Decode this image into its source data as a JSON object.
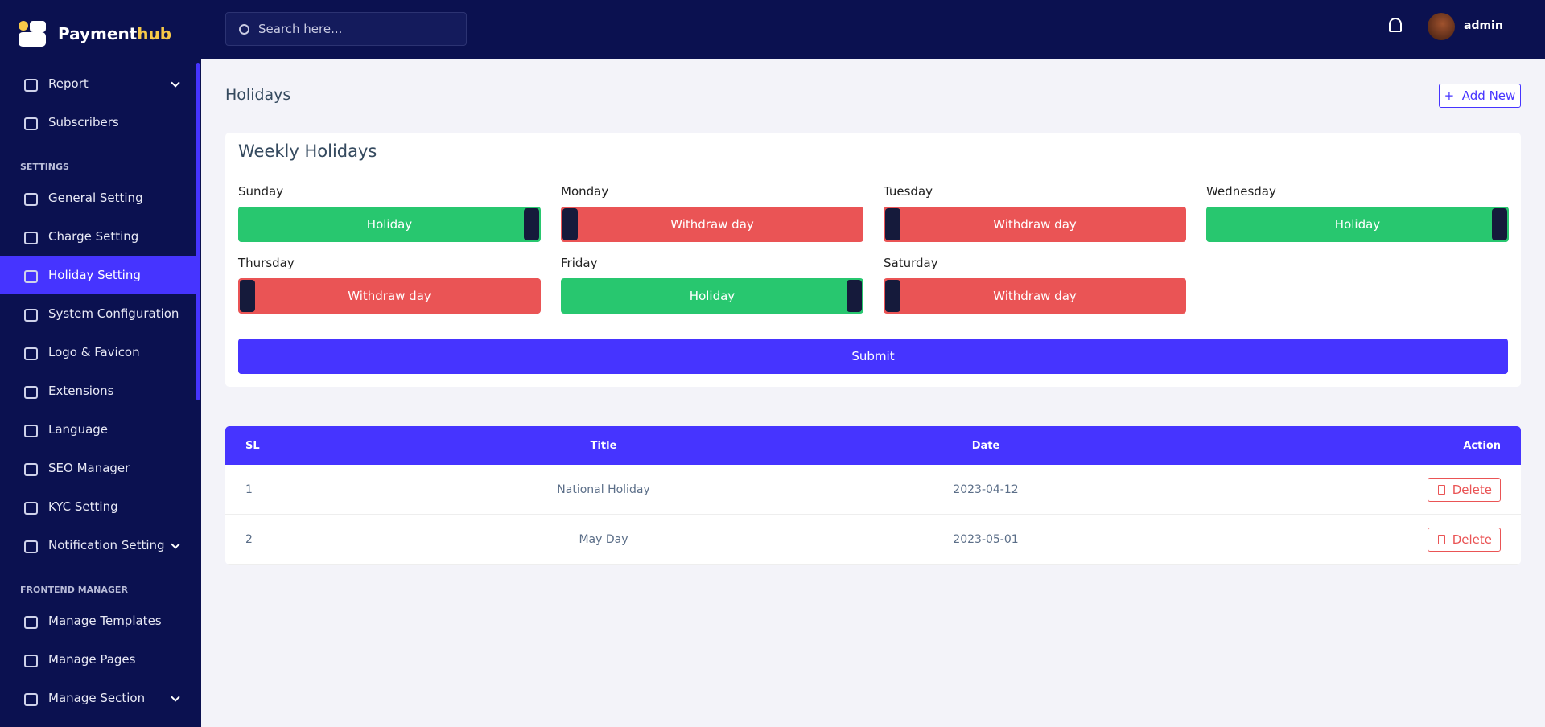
{
  "brand": {
    "first": "Payment",
    "second": "hub"
  },
  "topbar": {
    "search_placeholder": "Search here...",
    "user": "admin"
  },
  "sidebar": {
    "top_items": [
      "Report",
      "Subscribers"
    ],
    "settings": {
      "heading": "SETTINGS",
      "items": [
        "General Setting",
        "Charge Setting",
        "Holiday Setting",
        "System Configuration",
        "Logo & Favicon",
        "Extensions",
        "Language",
        "SEO Manager",
        "KYC Setting",
        "Notification Setting"
      ]
    },
    "frontend": {
      "heading": "FRONTEND MANAGER",
      "items": [
        "Manage Templates",
        "Manage Pages",
        "Manage Section"
      ]
    }
  },
  "page": {
    "title": "Holidays",
    "add_button": "Add New"
  },
  "weekly": {
    "title": "Weekly Holidays",
    "days": [
      {
        "day": "Sunday",
        "status": "Holiday"
      },
      {
        "day": "Monday",
        "status": "Withdraw day"
      },
      {
        "day": "Tuesday",
        "status": "Withdraw day"
      },
      {
        "day": "Wednesday",
        "status": "Holiday"
      },
      {
        "day": "Thursday",
        "status": "Withdraw day"
      },
      {
        "day": "Friday",
        "status": "Holiday"
      },
      {
        "day": "Saturday",
        "status": "Withdraw day"
      }
    ],
    "submit": "Submit"
  },
  "table": {
    "headers": [
      "SL",
      "Title",
      "Date",
      "Action"
    ],
    "rows": [
      [
        "1",
        "National Holiday",
        "2023-04-12",
        "Delete"
      ],
      [
        "2",
        "May Day",
        "2023-05-01",
        "Delete"
      ]
    ]
  }
}
